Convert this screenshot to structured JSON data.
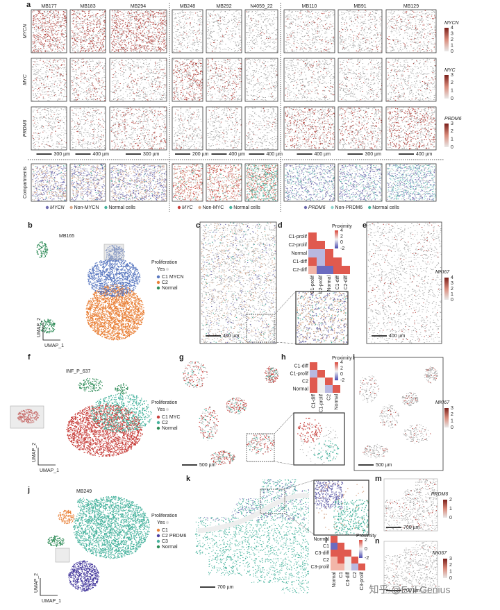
{
  "figure": {
    "a": {
      "label": "a",
      "samples": [
        "MB177",
        "MB183",
        "MB294",
        "MB248",
        "MB292",
        "N4059_22",
        "MB110",
        "MB91",
        "MB129"
      ],
      "genes": [
        "MYCN",
        "MYC",
        "PRDM6"
      ],
      "compartments_label": "Compartments",
      "colorbars": [
        {
          "title": "MYCN",
          "ticks": [
            4,
            3,
            2,
            1,
            0
          ]
        },
        {
          "title": "MYC",
          "ticks": [
            3,
            2,
            1,
            0
          ]
        },
        {
          "title": "PRDM6",
          "ticks": [
            3,
            2,
            1,
            0
          ]
        }
      ],
      "scale_bars": [
        "300 µm",
        "400 µm",
        "300 µm",
        "200 µm",
        "400 µm",
        "400 µm",
        "400 µm",
        "300 µm",
        "400 µm"
      ],
      "legends": [
        [
          "MYCN",
          "Non-MYCN",
          "Normal cells"
        ],
        [
          "MYC",
          "Non-MYC",
          "Normal cells"
        ],
        [
          "PRDM6",
          "Non-PRDM6",
          "Normal cells"
        ]
      ]
    },
    "b": {
      "label": "b",
      "sample": "MB165",
      "x_axis": "UMAP_1",
      "y_axis": "UMAP_2",
      "legend_title": "Proliferation",
      "legend_yes": "Yes",
      "clusters": [
        "C1 MYCN",
        "C2",
        "Normal"
      ]
    },
    "c": {
      "label": "c",
      "scale_bar": "400 µm"
    },
    "d": {
      "label": "d",
      "rows": [
        "C1-prolif",
        "C2-prolif",
        "Normal",
        "C1-diff",
        "C2-diff"
      ],
      "legend_title": "Proximity",
      "legend_ticks": [
        4,
        2,
        0,
        -2
      ]
    },
    "e": {
      "label": "e",
      "gene": "MKI67",
      "ticks": [
        4,
        3,
        2,
        1,
        0
      ],
      "scale_bar": "400 µm"
    },
    "f": {
      "label": "f",
      "sample": "INF_P_637",
      "x_axis": "UMAP_1",
      "y_axis": "UMAP_2",
      "legend_title": "Proliferation",
      "legend_yes": "Yes",
      "clusters": [
        "C1 MYC",
        "C2",
        "Normal"
      ]
    },
    "g": {
      "label": "g",
      "scale_bar": "500 µm"
    },
    "h": {
      "label": "h",
      "rows": [
        "C1-diff",
        "C1-prolif",
        "C2",
        "Normal"
      ],
      "legend_title": "Proximity",
      "legend_ticks": [
        4,
        2,
        0,
        -2
      ]
    },
    "i": {
      "label": "i",
      "gene": "MKI67",
      "ticks": [
        3,
        2,
        1,
        0
      ],
      "scale_bar": "500 µm"
    },
    "j": {
      "label": "j",
      "sample": "MB249",
      "x_axis": "UMAP_1",
      "y_axis": "UMAP_2",
      "legend_title": "Proliferation",
      "legend_yes": "Yes",
      "clusters": [
        "C1",
        "C2 PRDM6",
        "C3",
        "Normal"
      ]
    },
    "k": {
      "label": "k",
      "scale_bar": "700 µm"
    },
    "l": {
      "label": "l",
      "rows": [
        "Normal",
        "C1",
        "C3-diff",
        "C2",
        "C3-prolif"
      ],
      "legend_title": "Proximity",
      "legend_ticks": [
        2,
        0,
        -2
      ]
    },
    "m": {
      "label": "m",
      "gene": "PRDM6",
      "ticks": [
        2,
        1,
        0
      ],
      "scale_bar": "700 µm"
    },
    "n": {
      "label": "n",
      "gene": "MKI67",
      "ticks": [
        3,
        2,
        1,
        0
      ],
      "scale_bar": "700 µm"
    },
    "watermark": "知乎 @Evil Genius"
  }
}
